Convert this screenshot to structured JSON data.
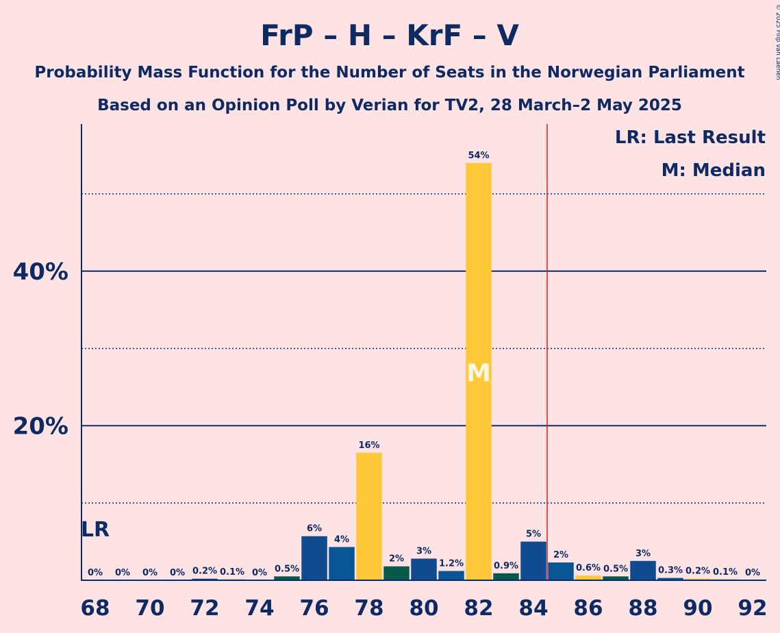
{
  "header": {
    "title": "FrP – H – KrF – V",
    "subtitle1": "Probability Mass Function for the Number of Seats in the Norwegian Parliament",
    "subtitle2": "Based on an Opinion Poll by Verian for TV2, 28 March–2 May 2025",
    "copyright": "© 2025 Filip van Laenen"
  },
  "legend": {
    "lr": "LR: Last Result",
    "median": "M: Median"
  },
  "colors": {
    "background": "#fde3e4",
    "text": "#0d2a63",
    "frp": "#0f4b8e",
    "h": "#0a5694",
    "krf": "#ffc83a",
    "v": "#075a4a",
    "majority_line": "#e21d1d"
  },
  "chart_data": {
    "type": "bar",
    "x": [
      68,
      69,
      70,
      71,
      72,
      73,
      74,
      75,
      76,
      77,
      78,
      79,
      80,
      81,
      82,
      83,
      84,
      85,
      86,
      87,
      88,
      89,
      90,
      91,
      92
    ],
    "values": [
      0,
      0,
      0,
      0,
      0.2,
      0.1,
      0,
      0.5,
      5.7,
      4.3,
      16.5,
      1.8,
      2.8,
      1.2,
      54.0,
      0.9,
      5.0,
      2.3,
      0.6,
      0.5,
      2.5,
      0.3,
      0.2,
      0.1,
      0
    ],
    "labels": [
      "0%",
      "0%",
      "0%",
      "0%",
      "0.2%",
      "0.1%",
      "0%",
      "0.5%",
      "6%",
      "4%",
      "16%",
      "2%",
      "3%",
      "1.2%",
      "54%",
      "0.9%",
      "5%",
      "2%",
      "0.6%",
      "0.5%",
      "3%",
      "0.3%",
      "0.2%",
      "0.1%",
      "0%"
    ],
    "bar_colors": [
      "#0f4b8e",
      "#0a5694",
      "#ffc83a",
      "#075a4a",
      "#0f4b8e",
      "#0a5694",
      "#ffc83a",
      "#075a4a",
      "#0f4b8e",
      "#0a5694",
      "#ffc83a",
      "#075a4a",
      "#0f4b8e",
      "#0a5694",
      "#ffc83a",
      "#075a4a",
      "#0f4b8e",
      "#0a5694",
      "#ffc83a",
      "#075a4a",
      "#0f4b8e",
      "#0a5694",
      "#ffc83a",
      "#075a4a",
      "#0f4b8e"
    ],
    "x_ticks": [
      "68",
      "70",
      "72",
      "74",
      "76",
      "78",
      "80",
      "82",
      "84",
      "86",
      "88",
      "90",
      "92"
    ],
    "y_ticks": [
      "20%",
      "40%"
    ],
    "y_tick_values": [
      20,
      40
    ],
    "ylim": [
      0,
      59
    ],
    "solid_gridlines": [
      20,
      40
    ],
    "dotted_gridlines": [
      10,
      30,
      50
    ],
    "last_result": 68,
    "last_result_label": "LR",
    "median": 82,
    "median_label": "M",
    "majority_threshold": 84.5
  }
}
